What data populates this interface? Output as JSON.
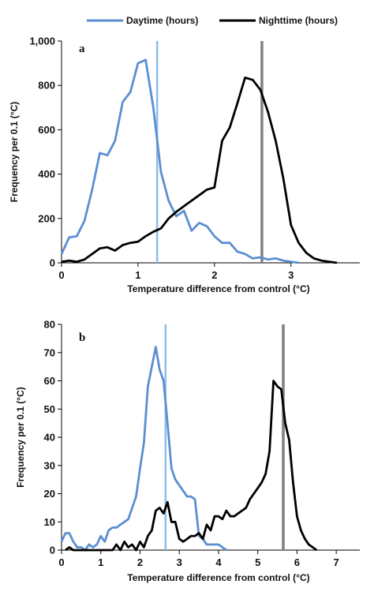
{
  "legend": {
    "placement": "top-center",
    "entries": [
      {
        "label": "Daytime (hours)",
        "color": "#5b8fd2"
      },
      {
        "label": "Nighttime (hours)",
        "color": "#000000"
      }
    ]
  },
  "colors": {
    "day": "#5b8fd2",
    "night": "#000000",
    "day_vline": "#8fbde8",
    "night_vline": "#808080"
  },
  "chart_data": [
    {
      "type": "line",
      "panel_label": "a",
      "xlabel": "Temperature difference from control (°C)",
      "ylabel": "Frequency per 0.1 (°C)",
      "xlim": [
        0,
        3.9
      ],
      "ylim": [
        0,
        1000
      ],
      "xticks": [
        0,
        1,
        2,
        3
      ],
      "yticks": [
        0,
        200,
        400,
        600,
        800,
        1000
      ],
      "ytick_labels": [
        "0",
        "200",
        "400",
        "600",
        "800",
        "1,000"
      ],
      "grid": false,
      "vlines": [
        {
          "x": 1.25,
          "series": "Daytime (hours)"
        },
        {
          "x": 2.62,
          "series": "Nighttime (hours)"
        }
      ],
      "series": [
        {
          "name": "Daytime (hours)",
          "x": [
            0.0,
            0.1,
            0.2,
            0.3,
            0.4,
            0.5,
            0.6,
            0.7,
            0.8,
            0.9,
            1.0,
            1.1,
            1.2,
            1.3,
            1.4,
            1.5,
            1.6,
            1.7,
            1.8,
            1.9,
            2.0,
            2.1,
            2.2,
            2.3,
            2.4,
            2.5,
            2.6,
            2.7,
            2.8,
            2.9,
            3.0,
            3.1
          ],
          "y": [
            40,
            115,
            120,
            190,
            330,
            495,
            485,
            550,
            725,
            770,
            900,
            915,
            700,
            410,
            280,
            210,
            235,
            145,
            180,
            165,
            120,
            90,
            90,
            50,
            40,
            20,
            25,
            15,
            20,
            10,
            5,
            0
          ]
        },
        {
          "name": "Nighttime (hours)",
          "x": [
            0.0,
            0.1,
            0.2,
            0.3,
            0.4,
            0.5,
            0.6,
            0.7,
            0.8,
            0.9,
            1.0,
            1.1,
            1.2,
            1.3,
            1.4,
            1.5,
            1.6,
            1.7,
            1.8,
            1.9,
            2.0,
            2.1,
            2.2,
            2.3,
            2.4,
            2.5,
            2.6,
            2.7,
            2.8,
            2.9,
            3.0,
            3.1,
            3.2,
            3.3,
            3.4,
            3.5,
            3.6
          ],
          "y": [
            5,
            10,
            5,
            15,
            40,
            65,
            70,
            55,
            80,
            90,
            95,
            120,
            140,
            155,
            200,
            230,
            255,
            280,
            305,
            330,
            340,
            550,
            610,
            720,
            835,
            825,
            780,
            680,
            550,
            380,
            170,
            90,
            45,
            20,
            10,
            5,
            0
          ]
        }
      ]
    },
    {
      "type": "line",
      "panel_label": "b",
      "xlabel": "Temperature difference from control (°C)",
      "ylabel": "Frequency per 0.1 (°C)",
      "xlim": [
        0,
        7.6
      ],
      "ylim": [
        0,
        80
      ],
      "xticks": [
        0,
        1,
        2,
        3,
        4,
        5,
        6,
        7
      ],
      "yticks": [
        0,
        10,
        20,
        30,
        40,
        50,
        60,
        70,
        80
      ],
      "ytick_labels": [
        "0",
        "10",
        "20",
        "30",
        "40",
        "50",
        "60",
        "70",
        "80"
      ],
      "grid": false,
      "vlines": [
        {
          "x": 2.65,
          "series": "Daytime (hours)"
        },
        {
          "x": 5.65,
          "series": "Nighttime (hours)"
        }
      ],
      "series": [
        {
          "name": "Daytime (hours)",
          "x": [
            0.0,
            0.1,
            0.2,
            0.3,
            0.4,
            0.5,
            0.6,
            0.7,
            0.8,
            0.9,
            1.0,
            1.1,
            1.2,
            1.3,
            1.4,
            1.5,
            1.6,
            1.7,
            1.8,
            1.9,
            2.0,
            2.1,
            2.2,
            2.3,
            2.4,
            2.5,
            2.6,
            2.7,
            2.8,
            2.9,
            3.0,
            3.1,
            3.2,
            3.3,
            3.4,
            3.5,
            3.6,
            3.7,
            3.8,
            3.9,
            4.0,
            4.1,
            4.2
          ],
          "y": [
            3,
            6,
            6,
            3,
            1,
            1,
            0,
            2,
            1,
            2,
            5,
            3,
            7,
            8,
            8,
            9,
            10,
            11,
            15,
            19,
            29,
            38,
            58,
            65,
            72,
            64,
            60,
            45,
            29,
            25,
            23,
            21,
            19,
            19,
            18,
            5,
            4,
            2,
            2,
            2,
            2,
            1,
            0
          ]
        },
        {
          "name": "Nighttime (hours)",
          "x": [
            0.1,
            0.2,
            0.3,
            0.4,
            0.5,
            0.6,
            0.7,
            0.8,
            0.9,
            1.0,
            1.1,
            1.2,
            1.3,
            1.4,
            1.5,
            1.6,
            1.7,
            1.8,
            1.9,
            2.0,
            2.1,
            2.2,
            2.3,
            2.4,
            2.5,
            2.6,
            2.7,
            2.8,
            2.9,
            3.0,
            3.1,
            3.2,
            3.3,
            3.4,
            3.5,
            3.6,
            3.7,
            3.8,
            3.9,
            4.0,
            4.1,
            4.2,
            4.3,
            4.4,
            4.5,
            4.6,
            4.7,
            4.8,
            4.9,
            5.0,
            5.1,
            5.2,
            5.3,
            5.4,
            5.5,
            5.6,
            5.7,
            5.8,
            5.9,
            6.0,
            6.1,
            6.2,
            6.3,
            6.4,
            6.5
          ],
          "y": [
            0,
            1,
            0,
            0,
            0,
            0,
            0,
            0,
            0,
            0,
            0,
            0,
            0,
            2,
            0,
            3,
            1,
            2,
            0,
            3,
            1,
            5,
            7,
            14,
            15,
            13,
            17,
            10,
            10,
            4,
            3,
            4,
            5,
            5,
            6,
            4,
            9,
            7,
            12,
            12,
            11,
            14,
            12,
            12,
            13,
            14,
            15,
            18,
            20,
            22,
            24,
            27,
            35,
            60,
            58,
            57,
            45,
            39,
            24,
            12,
            7,
            4,
            2,
            1,
            0
          ]
        }
      ]
    }
  ]
}
